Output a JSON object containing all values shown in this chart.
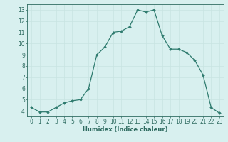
{
  "x": [
    0,
    1,
    2,
    3,
    4,
    5,
    6,
    7,
    8,
    9,
    10,
    11,
    12,
    13,
    14,
    15,
    16,
    17,
    18,
    19,
    20,
    21,
    22,
    23
  ],
  "y": [
    4.3,
    3.9,
    3.9,
    4.3,
    4.7,
    4.9,
    5.0,
    6.0,
    9.0,
    9.7,
    11.0,
    11.1,
    11.5,
    13.0,
    12.8,
    13.0,
    10.7,
    9.5,
    9.5,
    9.2,
    8.5,
    7.2,
    4.3,
    3.8
  ],
  "line_color": "#2e7b6e",
  "marker": "D",
  "marker_size": 1.8,
  "bg_color": "#d8f0ef",
  "grid_color": "#c8e4e2",
  "xlabel": "Humidex (Indice chaleur)",
  "xlim": [
    -0.5,
    23.5
  ],
  "ylim": [
    3.5,
    13.5
  ],
  "yticks": [
    4,
    5,
    6,
    7,
    8,
    9,
    10,
    11,
    12,
    13
  ],
  "xticks": [
    0,
    1,
    2,
    3,
    4,
    5,
    6,
    7,
    8,
    9,
    10,
    11,
    12,
    13,
    14,
    15,
    16,
    17,
    18,
    19,
    20,
    21,
    22,
    23
  ],
  "xlabel_fontsize": 6.0,
  "tick_fontsize": 5.5,
  "tick_color": "#2e6b60",
  "axis_color": "#2e6b60",
  "line_width": 0.9
}
